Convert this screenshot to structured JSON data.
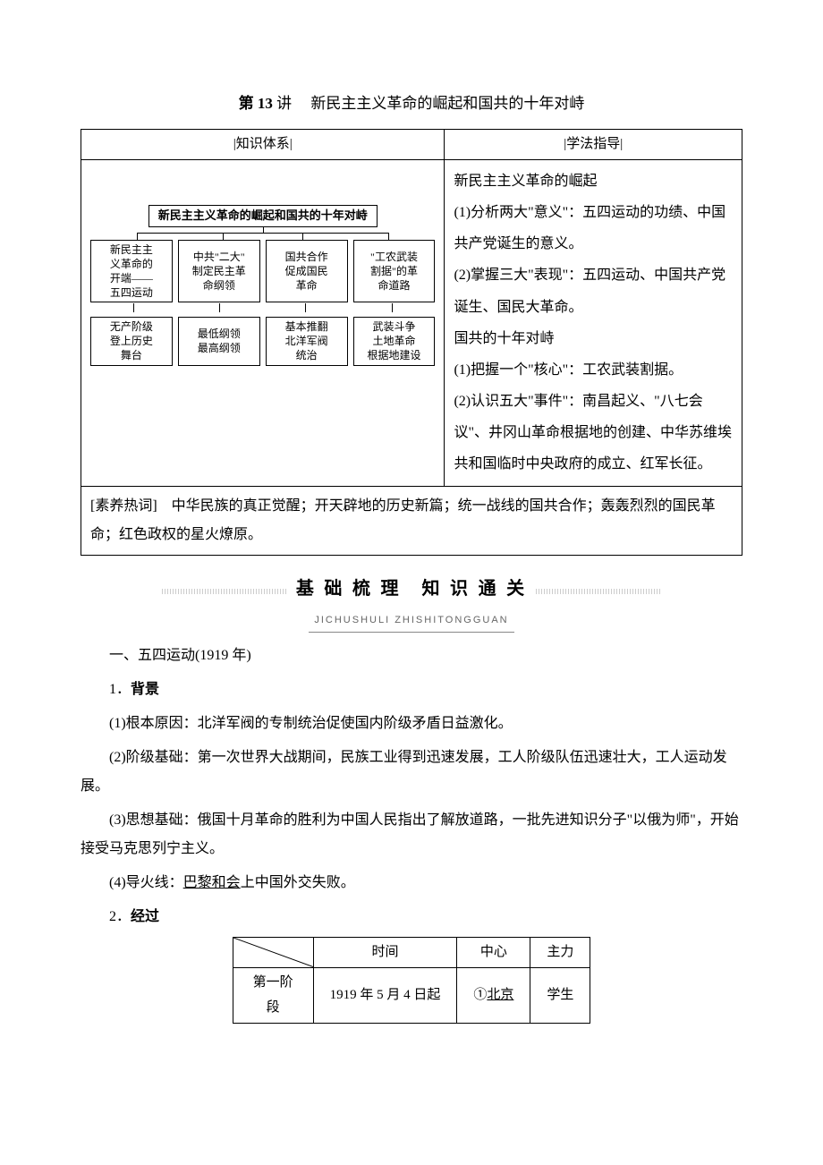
{
  "title_prefix": "第 13",
  "title_word": "讲",
  "title_main": "新民主主义革命的崛起和国共的十年对峙",
  "top_headers": {
    "left": "|知识体系|",
    "right": "|学法指导|"
  },
  "diagram": {
    "title": "新民主主义革命的崛起和国共的十年对峙",
    "row1": [
      "新民主主\n义革命的\n开端——\n五四运动",
      "中共\"二大\"\n制定民主革\n命纲领",
      "国共合作\n促成国民\n革命",
      "\"工农武装\n割据\"的革\n命道路"
    ],
    "row2": [
      "无产阶级\n登上历史\n舞台",
      "最低纲领\n最高纲领",
      "基本推翻\n北洋军阀\n统治",
      "武装斗争\n土地革命\n根据地建设"
    ]
  },
  "guide": {
    "h1": "新民主主义革命的崛起",
    "p1": "(1)分析两大\"意义\"：五四运动的功绩、中国共产党诞生的意义。",
    "p2": "(2)掌握三大\"表现\"：五四运动、中国共产党诞生、国民大革命。",
    "h2": "国共的十年对峙",
    "p3": "(1)把握一个\"核心\"：工农武装割据。",
    "p4": "(2)认识五大\"事件\"：南昌起义、\"八七会议\"、井冈山革命根据地的创建、中华苏维埃共和国临时中央政府的成立、红军长征。"
  },
  "hotword_label": "[素养热词]",
  "hotword_text": "　中华民族的真正觉醒；开天辟地的历史新篇；统一战线的国共合作；轰轰烈烈的国民革命；红色政权的星火燎原。",
  "banner": {
    "main": "基 础 梳 理　知 识 通 关",
    "sub": "JICHUSHULI ZHISHITONGGUAN"
  },
  "sec1_heading": "一、五四运动(1919 年)",
  "sec1_sub1_num": "1．",
  "sec1_sub1_title": "背景",
  "bg": {
    "p1a": "(1)根本原因：北洋军阀的专制统治促使国内阶级矛盾日益激化。",
    "p2a": "(2)阶级基础：第一次世界大战期间，民族工业得到迅速发展，工人阶级队伍迅速壮大，工人运动发展。",
    "p3a": "(3)思想基础：俄国十月革命的胜利为中国人民指出了解放道路，一批先进知识分子\"以俄为师\"，开始接受马克思列宁主义。",
    "p4a_pre": "(4)导火线：",
    "p4a_u": "巴黎和会",
    "p4a_post": "上中国外交失败。"
  },
  "sec1_sub2_num": "2．",
  "sec1_sub2_title": "经过",
  "proc": {
    "headers": [
      "时间",
      "中心",
      "主力"
    ],
    "row1_label": "第一阶段",
    "row1_time": "1919 年 5 月 4 日起",
    "row1_center_idx": "①",
    "row1_center_u": "北京",
    "row1_main": "学生"
  }
}
